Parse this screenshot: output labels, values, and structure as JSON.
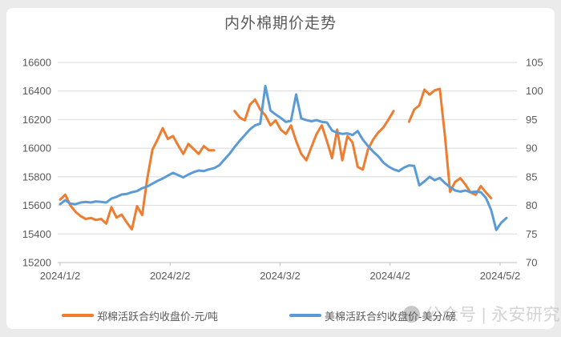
{
  "page": {
    "background_color": "#ebebeb",
    "card_color": "#ffffff"
  },
  "chart": {
    "title": "内外棉期价走势",
    "title_color": "#595959",
    "watermark": {
      "icon": "official-account-logo",
      "text": "公众号 | 永安研究"
    },
    "legend": [
      {
        "label": "郑棉活跃合约收盘价-元/吨",
        "color": "#ED7D31"
      },
      {
        "label": "美棉活跃合约收盘价-美分/磅",
        "color": "#5B9BD5"
      }
    ]
  },
  "chart_data": {
    "type": "line",
    "title": "内外棉期价走势",
    "grid": true,
    "gridline_color": "#d9d9d9",
    "axis_line_color": "#bfbfbf",
    "legend_position": "bottom",
    "x_axis": {
      "tick_labels": [
        "2024/1/2",
        "2024/2/2",
        "2024/3/2",
        "2024/4/2",
        "2024/5/2"
      ]
    },
    "y_left": {
      "min": 15200,
      "max": 16600,
      "step": 200,
      "tick_labels": [
        "16600",
        "16400",
        "16200",
        "16000",
        "15800",
        "15600",
        "15400",
        "15200"
      ]
    },
    "y_right": {
      "min": 70,
      "max": 105,
      "step": 5,
      "tick_labels": [
        "105",
        "100",
        "95",
        "90",
        "85",
        "80",
        "75",
        "70"
      ]
    },
    "series": [
      {
        "name": "郑棉活跃合约收盘价-元/吨",
        "axis": "left",
        "color": "#ED7D31",
        "unit": "元/吨",
        "values": [
          15640,
          15675,
          15600,
          15555,
          15525,
          15505,
          15512,
          15498,
          15505,
          15472,
          15588,
          15515,
          15535,
          15480,
          15432,
          15595,
          15532,
          15790,
          15990,
          16060,
          16140,
          16065,
          16085,
          16020,
          15960,
          16030,
          15995,
          15960,
          16015,
          15985,
          15985,
          null,
          null,
          null,
          16260,
          16215,
          16195,
          16305,
          16340,
          16270,
          16230,
          16160,
          16195,
          16130,
          16100,
          16160,
          16050,
          15960,
          15915,
          16010,
          16100,
          16160,
          16050,
          15930,
          16130,
          15915,
          16085,
          16040,
          15870,
          15850,
          15990,
          16060,
          16110,
          16145,
          16200,
          16260,
          null,
          null,
          16185,
          16270,
          16300,
          16410,
          16375,
          16405,
          16415,
          16085,
          15695,
          15765,
          15790,
          15745,
          15690,
          15675,
          15735,
          15690,
          15650,
          null,
          null,
          null
        ]
      },
      {
        "name": "美棉活跃合约收盘价-美分/磅",
        "axis": "right",
        "color": "#5B9BD5",
        "unit": "美分/磅",
        "values": [
          80.2,
          80.9,
          80.3,
          80.2,
          80.5,
          80.6,
          80.5,
          80.7,
          80.6,
          80.5,
          81.2,
          81.5,
          81.9,
          82.0,
          82.3,
          82.5,
          83.0,
          83.3,
          83.8,
          84.3,
          84.7,
          85.2,
          85.7,
          85.3,
          84.9,
          85.4,
          85.8,
          86.1,
          86.0,
          86.3,
          86.5,
          87.0,
          88.0,
          89.0,
          90.2,
          91.3,
          92.3,
          93.3,
          94.0,
          94.3,
          100.9,
          96.6,
          95.9,
          95.3,
          94.6,
          94.8,
          99.4,
          95.2,
          94.9,
          94.7,
          94.9,
          94.6,
          94.5,
          93.1,
          92.7,
          92.5,
          92.6,
          92.3,
          93.0,
          91.5,
          90.4,
          89.4,
          88.6,
          87.5,
          86.8,
          86.3,
          86.0,
          86.6,
          87.0,
          86.9,
          83.5,
          84.2,
          85.0,
          84.4,
          84.8,
          83.9,
          83.2,
          82.6,
          82.4,
          82.6,
          82.3,
          82.4,
          82.3,
          81.3,
          79.2,
          75.7,
          77.0,
          77.8
        ]
      }
    ]
  }
}
